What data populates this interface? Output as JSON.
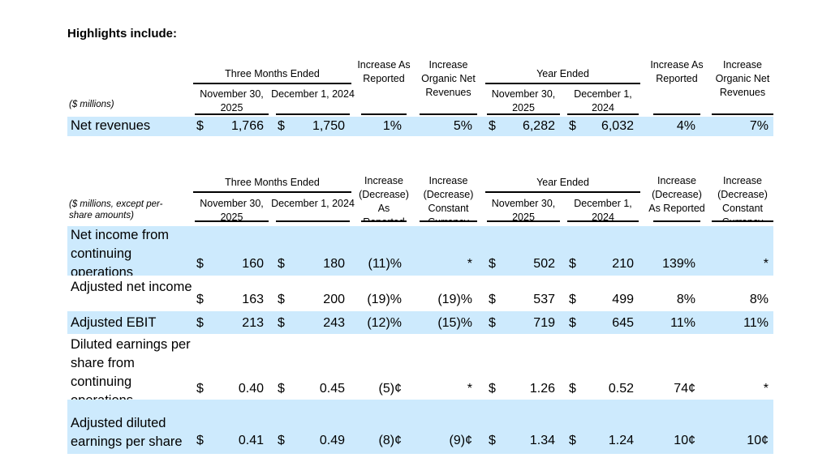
{
  "title": "Highlights include:",
  "table1": {
    "unit_label": "($ millions)",
    "group_headers": [
      "Three Months Ended",
      "Year Ended"
    ],
    "col_headers": [
      "November 30, 2025",
      "December 1, 2024",
      "Increase As Reported",
      "Increase Organic Net Revenues",
      "November 30, 2025",
      "December 1, 2024",
      "Increase As Reported",
      "Increase Organic Net Revenues"
    ],
    "rows": [
      {
        "label": "Net revenues",
        "values": [
          "1,766",
          "1,750",
          "1%",
          "5%",
          "6,282",
          "6,032",
          "4%",
          "7%"
        ]
      }
    ]
  },
  "table2": {
    "unit_label": "($ millions, except per-share amounts)",
    "group_headers": [
      "Three Months Ended",
      "Year Ended"
    ],
    "col_headers": [
      "November 30, 2025",
      "December 1, 2024",
      "Increase (Decrease) As Reported",
      "Increase (Decrease) Constant Currency",
      "November 30, 2025",
      "December 1, 2024",
      "Increase (Decrease) As Reported",
      "Increase (Decrease) Constant Currency"
    ],
    "rows": [
      {
        "label": "Net income from continuing operations",
        "values": [
          "160",
          "180",
          "(11)%",
          "*",
          "502",
          "210",
          "139%",
          "*"
        ]
      },
      {
        "label": "Adjusted net income",
        "values": [
          "163",
          "200",
          "(19)%",
          "(19)%",
          "537",
          "499",
          "8%",
          "8%"
        ]
      },
      {
        "label": "Adjusted EBIT",
        "values": [
          "213",
          "243",
          "(12)%",
          "(15)%",
          "719",
          "645",
          "11%",
          "11%"
        ]
      },
      {
        "label": "Diluted earnings per share from continuing operations",
        "values": [
          "0.40",
          "0.45",
          "(5)¢",
          "*",
          "1.26",
          "0.52",
          "74¢",
          "*"
        ]
      },
      {
        "label": "Adjusted diluted earnings per share",
        "values": [
          "0.41",
          "0.49",
          "(8)¢",
          "(9)¢",
          "1.34",
          "1.24",
          "10¢",
          "10¢"
        ]
      }
    ]
  },
  "currency_symbol": "$",
  "colors": {
    "highlight_row": "#cdeafd"
  }
}
